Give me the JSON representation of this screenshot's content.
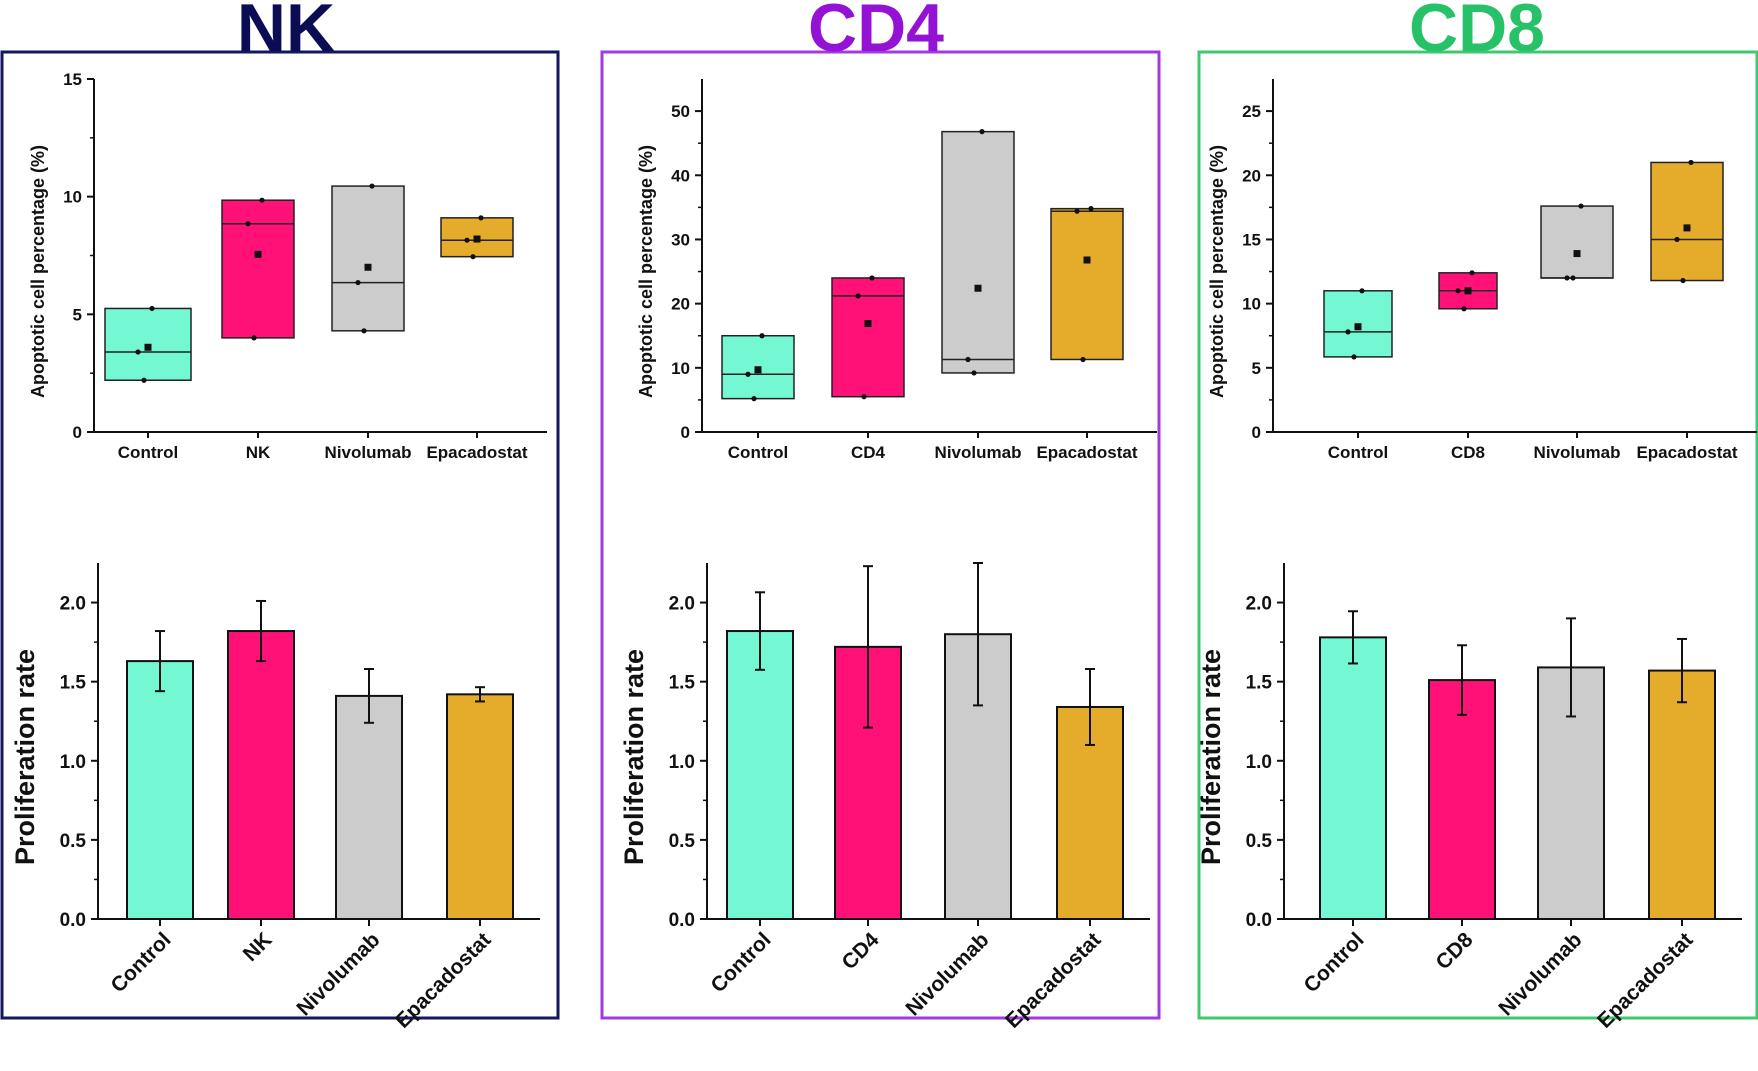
{
  "colors": {
    "Control": "#74f7d3",
    "cell": "#ff1177",
    "Nivolumab": "#cccccc",
    "Epacadostat": "#e5ab2b"
  },
  "chart_data": [
    {
      "panel": "NK",
      "title": "NK",
      "title_color": "#0c0c55",
      "border_color": "#14165e",
      "box": {
        "type": "box",
        "ylabel": "Apoptotic cell percentage (%)",
        "ylim": [
          0,
          15
        ],
        "yticks": [
          0,
          5,
          10,
          15
        ],
        "categories": [
          "Control",
          "NK",
          "Nivolumab",
          "Epacadostat"
        ],
        "groups": [
          {
            "low": 2.2,
            "high": 5.25,
            "median": 3.4,
            "mean": 3.6,
            "points": [
              2.2,
              3.4,
              5.25
            ]
          },
          {
            "low": 4.0,
            "high": 9.85,
            "median": 8.85,
            "mean": 7.55,
            "points": [
              4.0,
              8.85,
              9.85
            ]
          },
          {
            "low": 4.3,
            "high": 10.45,
            "median": 6.35,
            "mean": 7.0,
            "points": [
              4.3,
              6.35,
              10.45
            ]
          },
          {
            "low": 7.45,
            "high": 9.1,
            "median": 8.15,
            "mean": 8.2,
            "points": [
              7.45,
              8.15,
              9.1
            ]
          }
        ]
      },
      "bar": {
        "type": "bar",
        "ylabel": "Proliferation rate",
        "ylim": [
          0,
          2.25
        ],
        "yticks": [
          0.0,
          0.5,
          1.0,
          1.5,
          2.0
        ],
        "yticklabels": [
          "0.0",
          "0.5",
          "1.0",
          "1.5",
          "2.0"
        ],
        "categories": [
          "Control",
          "NK",
          "Nivolumab",
          "Epacadostat"
        ],
        "values": [
          1.63,
          1.82,
          1.41,
          1.42
        ],
        "errors": [
          0.19,
          0.19,
          0.17,
          0.045
        ]
      }
    },
    {
      "panel": "CD4",
      "title": "CD4",
      "title_color": "#9412d4",
      "border_color": "#a13ae0",
      "box": {
        "type": "box",
        "ylabel": "Apoptotic cell percentage (%)",
        "ylim": [
          0,
          55
        ],
        "yticks": [
          0,
          10,
          20,
          30,
          40,
          50
        ],
        "categories": [
          "Control",
          "CD4",
          "Nivolumab",
          "Epacadostat"
        ],
        "groups": [
          {
            "low": 5.2,
            "high": 15.0,
            "median": 9.0,
            "mean": 9.7,
            "points": [
              5.2,
              9.0,
              15.0
            ]
          },
          {
            "low": 5.5,
            "high": 24.0,
            "median": 21.2,
            "mean": 16.9,
            "points": [
              5.5,
              21.2,
              24.0
            ]
          },
          {
            "low": 9.2,
            "high": 46.8,
            "median": 11.3,
            "mean": 22.4,
            "points": [
              9.2,
              11.3,
              46.8
            ]
          },
          {
            "low": 11.3,
            "high": 34.8,
            "median": 34.4,
            "mean": 26.8,
            "points": [
              11.3,
              34.4,
              34.8
            ]
          }
        ]
      },
      "bar": {
        "type": "bar",
        "ylabel": "Proliferation rate",
        "ylim": [
          0,
          2.25
        ],
        "yticks": [
          0.0,
          0.5,
          1.0,
          1.5,
          2.0
        ],
        "yticklabels": [
          "0.0",
          "0.5",
          "1.0",
          "1.5",
          "2.0"
        ],
        "categories": [
          "Control",
          "CD4",
          "Nivolumab",
          "Epacadostat"
        ],
        "values": [
          1.82,
          1.72,
          1.8,
          1.34
        ],
        "errors": [
          0.245,
          0.51,
          0.45,
          0.24
        ]
      }
    },
    {
      "panel": "CD8",
      "title": "CD8",
      "title_color": "#27c167",
      "border_color": "#3ec96e",
      "box": {
        "type": "box",
        "ylabel": "Apoptotic cell percentage (%)",
        "ylim": [
          0,
          27.5
        ],
        "yticks": [
          0,
          5,
          10,
          15,
          20,
          25
        ],
        "categories": [
          "Control",
          "CD8",
          "Nivolumab",
          "Epacadostat"
        ],
        "groups": [
          {
            "low": 5.85,
            "high": 11.0,
            "median": 7.8,
            "mean": 8.2,
            "points": [
              5.85,
              7.8,
              11.0
            ]
          },
          {
            "low": 9.6,
            "high": 12.4,
            "median": 11.0,
            "mean": 11.0,
            "points": [
              9.6,
              11.0,
              12.4
            ]
          },
          {
            "low": 12.0,
            "high": 17.6,
            "median": 12.0,
            "mean": 13.9,
            "points": [
              12.0,
              12.0,
              17.6
            ]
          },
          {
            "low": 11.8,
            "high": 21.0,
            "median": 15.0,
            "mean": 15.9,
            "points": [
              11.8,
              15.0,
              21.0
            ]
          }
        ]
      },
      "bar": {
        "type": "bar",
        "ylabel": "Proliferation rate",
        "ylim": [
          0,
          2.25
        ],
        "yticks": [
          0.0,
          0.5,
          1.0,
          1.5,
          2.0
        ],
        "yticklabels": [
          "0.0",
          "0.5",
          "1.0",
          "1.5",
          "2.0"
        ],
        "categories": [
          "Control",
          "CD8",
          "Nivolumab",
          "Epacadostat"
        ],
        "values": [
          1.78,
          1.51,
          1.59,
          1.57
        ],
        "errors": [
          0.165,
          0.22,
          0.31,
          0.2
        ]
      }
    }
  ]
}
